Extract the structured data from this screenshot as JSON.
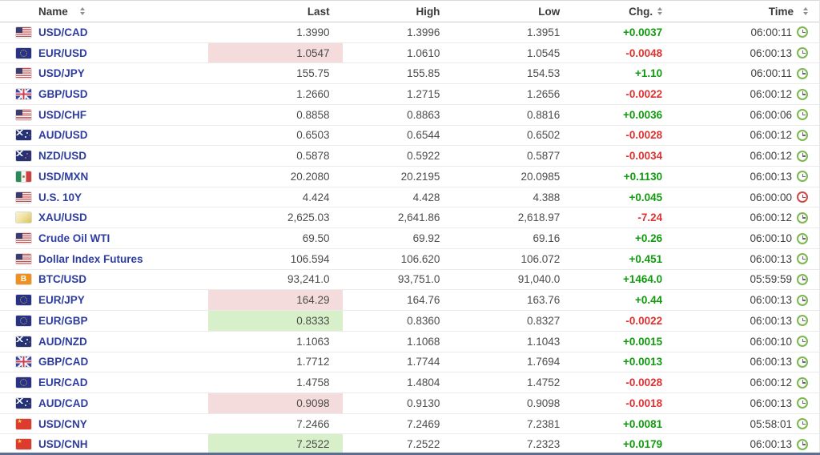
{
  "colors": {
    "positive": "#119b0f",
    "negative": "#de3232",
    "flash_red": "#f5dcdc",
    "flash_green": "#d7f0c9",
    "link": "#2e3da0"
  },
  "table": {
    "columns": [
      {
        "key": "name",
        "label": "Name",
        "sortable": true
      },
      {
        "key": "last",
        "label": "Last",
        "sortable": false
      },
      {
        "key": "high",
        "label": "High",
        "sortable": false
      },
      {
        "key": "low",
        "label": "Low",
        "sortable": false
      },
      {
        "key": "chg",
        "label": "Chg.",
        "sortable": true
      },
      {
        "key": "time",
        "label": "Time",
        "sortable": true
      }
    ],
    "rows": [
      {
        "flag": "us",
        "name": "USD/CAD",
        "last": "1.3990",
        "high": "1.3996",
        "low": "1.3951",
        "chg": "+0.0037",
        "chg_dir": "up",
        "time": "06:00:11",
        "clock": "green",
        "flash": null
      },
      {
        "flag": "eu",
        "name": "EUR/USD",
        "last": "1.0547",
        "high": "1.0610",
        "low": "1.0545",
        "chg": "-0.0048",
        "chg_dir": "down",
        "time": "06:00:13",
        "clock": "green",
        "flash": "red"
      },
      {
        "flag": "us",
        "name": "USD/JPY",
        "last": "155.75",
        "high": "155.85",
        "low": "154.53",
        "chg": "+1.10",
        "chg_dir": "up",
        "time": "06:00:11",
        "clock": "green",
        "flash": null
      },
      {
        "flag": "gb",
        "name": "GBP/USD",
        "last": "1.2660",
        "high": "1.2715",
        "low": "1.2656",
        "chg": "-0.0022",
        "chg_dir": "down",
        "time": "06:00:12",
        "clock": "green",
        "flash": null
      },
      {
        "flag": "us",
        "name": "USD/CHF",
        "last": "0.8858",
        "high": "0.8863",
        "low": "0.8816",
        "chg": "+0.0036",
        "chg_dir": "up",
        "time": "06:00:06",
        "clock": "green",
        "flash": null
      },
      {
        "flag": "au",
        "name": "AUD/USD",
        "last": "0.6503",
        "high": "0.6544",
        "low": "0.6502",
        "chg": "-0.0028",
        "chg_dir": "down",
        "time": "06:00:12",
        "clock": "green",
        "flash": null
      },
      {
        "flag": "nz",
        "name": "NZD/USD",
        "last": "0.5878",
        "high": "0.5922",
        "low": "0.5877",
        "chg": "-0.0034",
        "chg_dir": "down",
        "time": "06:00:12",
        "clock": "green",
        "flash": null
      },
      {
        "flag": "mx",
        "name": "USD/MXN",
        "last": "20.2080",
        "high": "20.2195",
        "low": "20.0985",
        "chg": "+0.1130",
        "chg_dir": "up",
        "time": "06:00:13",
        "clock": "green",
        "flash": null
      },
      {
        "flag": "us",
        "name": "U.S. 10Y",
        "last": "4.424",
        "high": "4.428",
        "low": "4.388",
        "chg": "+0.045",
        "chg_dir": "up",
        "time": "06:00:00",
        "clock": "red",
        "flash": null
      },
      {
        "flag": "gold",
        "name": "XAU/USD",
        "last": "2,625.03",
        "high": "2,641.86",
        "low": "2,618.97",
        "chg": "-7.24",
        "chg_dir": "down",
        "time": "06:00:12",
        "clock": "green",
        "flash": null
      },
      {
        "flag": "us",
        "name": "Crude Oil WTI",
        "last": "69.50",
        "high": "69.92",
        "low": "69.16",
        "chg": "+0.26",
        "chg_dir": "up",
        "time": "06:00:10",
        "clock": "green",
        "flash": null
      },
      {
        "flag": "us",
        "name": "Dollar Index Futures",
        "last": "106.594",
        "high": "106.620",
        "low": "106.072",
        "chg": "+0.451",
        "chg_dir": "up",
        "time": "06:00:13",
        "clock": "green",
        "flash": null
      },
      {
        "flag": "btc",
        "name": "BTC/USD",
        "last": "93,241.0",
        "high": "93,751.0",
        "low": "91,040.0",
        "chg": "+1464.0",
        "chg_dir": "up",
        "time": "05:59:59",
        "clock": "green",
        "flash": null
      },
      {
        "flag": "eu",
        "name": "EUR/JPY",
        "last": "164.29",
        "high": "164.76",
        "low": "163.76",
        "chg": "+0.44",
        "chg_dir": "up",
        "time": "06:00:13",
        "clock": "green",
        "flash": "red"
      },
      {
        "flag": "eu",
        "name": "EUR/GBP",
        "last": "0.8333",
        "high": "0.8360",
        "low": "0.8327",
        "chg": "-0.0022",
        "chg_dir": "down",
        "time": "06:00:13",
        "clock": "green",
        "flash": "green"
      },
      {
        "flag": "au",
        "name": "AUD/NZD",
        "last": "1.1063",
        "high": "1.1068",
        "low": "1.1043",
        "chg": "+0.0015",
        "chg_dir": "up",
        "time": "06:00:10",
        "clock": "green",
        "flash": null
      },
      {
        "flag": "gb",
        "name": "GBP/CAD",
        "last": "1.7712",
        "high": "1.7744",
        "low": "1.7694",
        "chg": "+0.0013",
        "chg_dir": "up",
        "time": "06:00:13",
        "clock": "green",
        "flash": null
      },
      {
        "flag": "eu",
        "name": "EUR/CAD",
        "last": "1.4758",
        "high": "1.4804",
        "low": "1.4752",
        "chg": "-0.0028",
        "chg_dir": "down",
        "time": "06:00:12",
        "clock": "green",
        "flash": null
      },
      {
        "flag": "au",
        "name": "AUD/CAD",
        "last": "0.9098",
        "high": "0.9130",
        "low": "0.9098",
        "chg": "-0.0018",
        "chg_dir": "down",
        "time": "06:00:13",
        "clock": "green",
        "flash": "red"
      },
      {
        "flag": "cn",
        "name": "USD/CNY",
        "last": "7.2466",
        "high": "7.2469",
        "low": "7.2381",
        "chg": "+0.0081",
        "chg_dir": "up",
        "time": "05:58:01",
        "clock": "green",
        "flash": null
      },
      {
        "flag": "cn",
        "name": "USD/CNH",
        "last": "7.2522",
        "high": "7.2522",
        "low": "7.2323",
        "chg": "+0.0179",
        "chg_dir": "up",
        "time": "06:00:13",
        "clock": "green",
        "flash": "green"
      }
    ]
  }
}
